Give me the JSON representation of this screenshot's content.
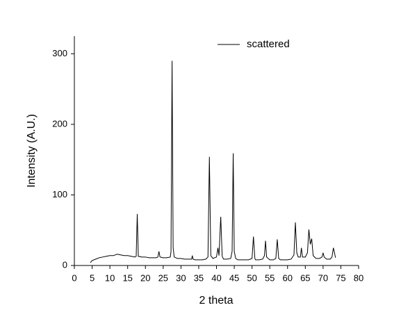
{
  "chart_data": {
    "type": "line",
    "xlabel": "2 theta",
    "ylabel": "Intensity (A.U.)",
    "x": [
      4.5,
      5,
      6,
      7,
      8,
      9,
      10,
      11,
      12,
      13,
      14,
      15,
      16,
      17,
      17.4,
      17.7,
      18.0,
      19,
      20,
      21,
      22,
      23,
      23.5,
      23.8,
      24.1,
      25,
      26,
      27,
      27.2,
      27.5,
      27.8,
      28.1,
      29,
      30,
      31,
      32,
      33,
      33.2,
      33.4,
      34,
      35,
      36,
      37,
      37.6,
      38.0,
      38.4,
      39,
      40,
      40.4,
      40.7,
      41.2,
      41.6,
      42,
      43,
      44,
      44.4,
      44.7,
      45.0,
      45.4,
      46,
      47,
      48,
      49,
      50,
      50.4,
      50.8,
      51,
      52,
      53,
      53.5,
      53.8,
      54.1,
      55,
      56,
      56.7,
      57.1,
      57.5,
      58,
      59,
      60,
      61,
      61.8,
      62.2,
      62.6,
      63,
      63.6,
      63.9,
      64.2,
      65,
      65.6,
      66.0,
      66.4,
      66.8,
      67.2,
      68,
      69,
      69.7,
      70.0,
      70.3,
      71,
      72,
      72.5,
      72.9,
      73.2,
      73.5
    ],
    "series": [
      {
        "name": "scattered",
        "color": "#000000",
        "values": [
          4,
          7,
          9,
          11,
          12,
          13,
          14,
          14,
          16,
          15,
          14,
          14,
          13,
          12,
          13,
          73,
          13,
          12,
          12,
          11,
          11,
          11,
          12,
          20,
          12,
          11,
          11,
          12,
          20,
          290,
          25,
          12,
          10,
          10,
          9,
          9,
          9,
          14,
          9,
          8,
          8,
          8,
          9,
          12,
          154,
          14,
          10,
          12,
          25,
          14,
          69,
          13,
          9,
          9,
          10,
          20,
          159,
          20,
          10,
          8,
          8,
          8,
          8,
          10,
          41,
          10,
          8,
          8,
          9,
          14,
          35,
          12,
          8,
          8,
          10,
          37,
          10,
          8,
          8,
          8,
          9,
          15,
          61,
          18,
          12,
          12,
          25,
          12,
          12,
          18,
          51,
          30,
          38,
          14,
          10,
          10,
          12,
          18,
          12,
          9,
          9,
          12,
          25,
          18,
          11
        ]
      }
    ],
    "xlim": [
      0,
      80
    ],
    "xticks": [
      0,
      5,
      10,
      15,
      20,
      25,
      30,
      35,
      40,
      45,
      50,
      55,
      60,
      65,
      70,
      75,
      80
    ],
    "ylim": [
      0,
      325
    ],
    "yticks": [
      0,
      100,
      200,
      300
    ],
    "legend": "top-right"
  }
}
